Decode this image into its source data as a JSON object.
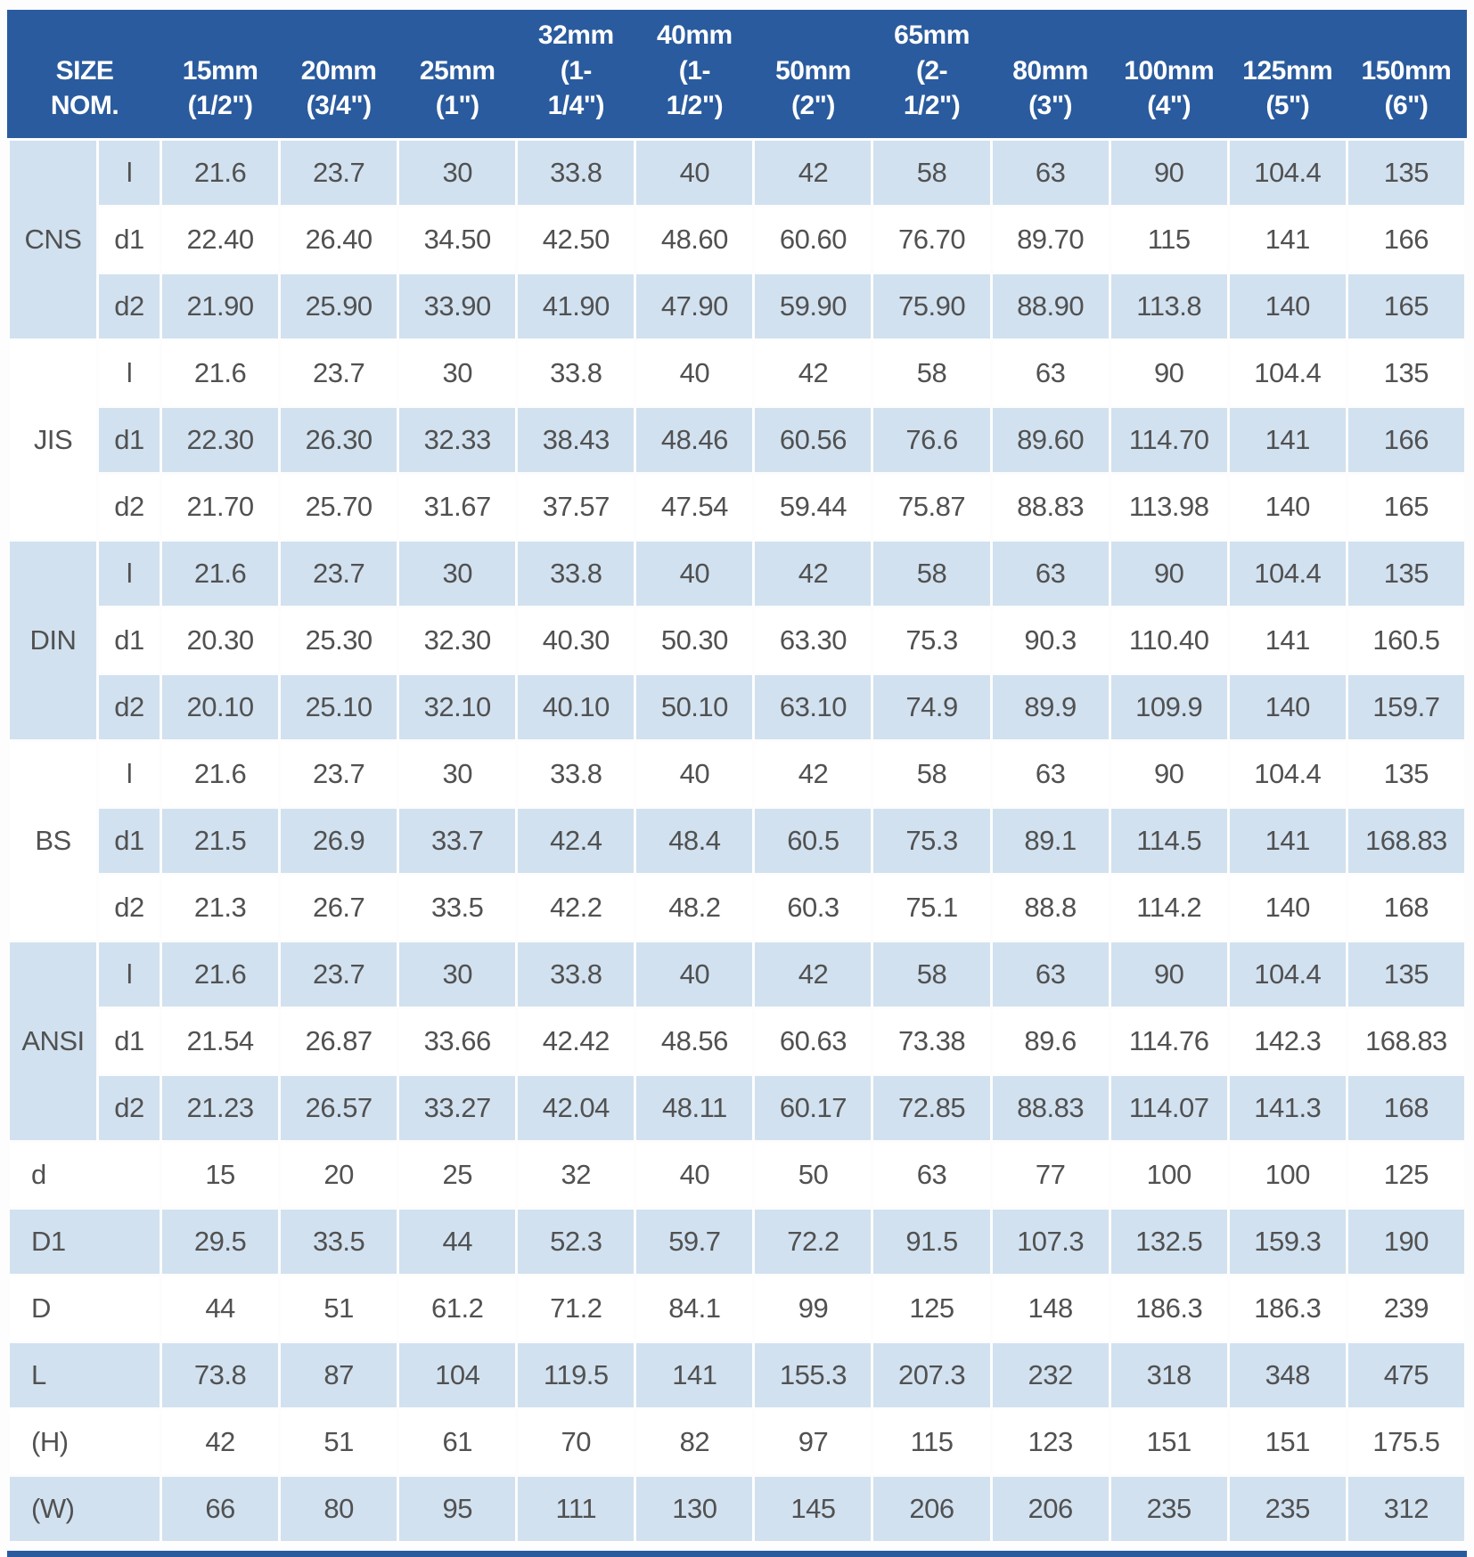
{
  "table": {
    "header": {
      "size_lines": [
        "SIZE",
        "NOM."
      ],
      "columns": [
        {
          "lines": [
            "15mm",
            "(1/2\")"
          ]
        },
        {
          "lines": [
            "20mm",
            "(3/4\")"
          ]
        },
        {
          "lines": [
            "25mm",
            "(1\")"
          ]
        },
        {
          "lines": [
            "32mm",
            "(1-",
            "1/4\")"
          ]
        },
        {
          "lines": [
            "40mm",
            "(1-",
            "1/2\")"
          ]
        },
        {
          "lines": [
            "50mm",
            "(2\")"
          ]
        },
        {
          "lines": [
            "65mm",
            "(2-",
            "1/2\")"
          ]
        },
        {
          "lines": [
            "80mm",
            "(3\")"
          ]
        },
        {
          "lines": [
            "100mm",
            "(4\")"
          ]
        },
        {
          "lines": [
            "125mm",
            "(5\")"
          ]
        },
        {
          "lines": [
            "150mm",
            "(6\")"
          ]
        }
      ]
    },
    "groups": [
      {
        "name": "CNS",
        "rows": [
          {
            "label": "l",
            "values": [
              "21.6",
              "23.7",
              "30",
              "33.8",
              "40",
              "42",
              "58",
              "63",
              "90",
              "104.4",
              "135"
            ]
          },
          {
            "label": "d1",
            "values": [
              "22.40",
              "26.40",
              "34.50",
              "42.50",
              "48.60",
              "60.60",
              "76.70",
              "89.70",
              "115",
              "141",
              "166"
            ]
          },
          {
            "label": "d2",
            "values": [
              "21.90",
              "25.90",
              "33.90",
              "41.90",
              "47.90",
              "59.90",
              "75.90",
              "88.90",
              "113.8",
              "140",
              "165"
            ]
          }
        ]
      },
      {
        "name": "JIS",
        "rows": [
          {
            "label": "l",
            "values": [
              "21.6",
              "23.7",
              "30",
              "33.8",
              "40",
              "42",
              "58",
              "63",
              "90",
              "104.4",
              "135"
            ]
          },
          {
            "label": "d1",
            "values": [
              "22.30",
              "26.30",
              "32.33",
              "38.43",
              "48.46",
              "60.56",
              "76.6",
              "89.60",
              "114.70",
              "141",
              "166"
            ]
          },
          {
            "label": "d2",
            "values": [
              "21.70",
              "25.70",
              "31.67",
              "37.57",
              "47.54",
              "59.44",
              "75.87",
              "88.83",
              "113.98",
              "140",
              "165"
            ]
          }
        ]
      },
      {
        "name": "DIN",
        "rows": [
          {
            "label": "l",
            "values": [
              "21.6",
              "23.7",
              "30",
              "33.8",
              "40",
              "42",
              "58",
              "63",
              "90",
              "104.4",
              "135"
            ]
          },
          {
            "label": "d1",
            "values": [
              "20.30",
              "25.30",
              "32.30",
              "40.30",
              "50.30",
              "63.30",
              "75.3",
              "90.3",
              "110.40",
              "141",
              "160.5"
            ]
          },
          {
            "label": "d2",
            "values": [
              "20.10",
              "25.10",
              "32.10",
              "40.10",
              "50.10",
              "63.10",
              "74.9",
              "89.9",
              "109.9",
              "140",
              "159.7"
            ]
          }
        ]
      },
      {
        "name": "BS",
        "rows": [
          {
            "label": "l",
            "values": [
              "21.6",
              "23.7",
              "30",
              "33.8",
              "40",
              "42",
              "58",
              "63",
              "90",
              "104.4",
              "135"
            ]
          },
          {
            "label": "d1",
            "values": [
              "21.5",
              "26.9",
              "33.7",
              "42.4",
              "48.4",
              "60.5",
              "75.3",
              "89.1",
              "114.5",
              "141",
              "168.83"
            ]
          },
          {
            "label": "d2",
            "values": [
              "21.3",
              "26.7",
              "33.5",
              "42.2",
              "48.2",
              "60.3",
              "75.1",
              "88.8",
              "114.2",
              "140",
              "168"
            ]
          }
        ]
      },
      {
        "name": "ANSI",
        "rows": [
          {
            "label": "l",
            "values": [
              "21.6",
              "23.7",
              "30",
              "33.8",
              "40",
              "42",
              "58",
              "63",
              "90",
              "104.4",
              "135"
            ]
          },
          {
            "label": "d1",
            "values": [
              "21.54",
              "26.87",
              "33.66",
              "42.42",
              "48.56",
              "60.63",
              "73.38",
              "89.6",
              "114.76",
              "142.3",
              "168.83"
            ]
          },
          {
            "label": "d2",
            "values": [
              "21.23",
              "26.57",
              "33.27",
              "42.04",
              "48.11",
              "60.17",
              "72.85",
              "88.83",
              "114.07",
              "141.3",
              "168"
            ]
          }
        ]
      }
    ],
    "single_rows": [
      {
        "label": "d",
        "values": [
          "15",
          "20",
          "25",
          "32",
          "40",
          "50",
          "63",
          "77",
          "100",
          "100",
          "125"
        ]
      },
      {
        "label": "D1",
        "values": [
          "29.5",
          "33.5",
          "44",
          "52.3",
          "59.7",
          "72.2",
          "91.5",
          "107.3",
          "132.5",
          "159.3",
          "190"
        ]
      },
      {
        "label": "D",
        "values": [
          "44",
          "51",
          "61.2",
          "71.2",
          "84.1",
          "99",
          "125",
          "148",
          "186.3",
          "186.3",
          "239"
        ]
      },
      {
        "label": "L",
        "values": [
          "73.8",
          "87",
          "104",
          "119.5",
          "141",
          "155.3",
          "207.3",
          "232",
          "318",
          "348",
          "475"
        ]
      },
      {
        "label": "(H)",
        "values": [
          "42",
          "51",
          "61",
          "70",
          "82",
          "97",
          "115",
          "123",
          "151",
          "151",
          "175.5"
        ]
      },
      {
        "label": "(W)",
        "values": [
          "66",
          "80",
          "95",
          "111",
          "130",
          "145",
          "206",
          "206",
          "235",
          "235",
          "312"
        ]
      }
    ],
    "colors": {
      "header_bg": "#2a5b9e",
      "stripe_bg": "#d1e1f0",
      "plain_bg": "#ffffff",
      "cell_text": "#515151",
      "header_text": "#ffffff"
    }
  }
}
